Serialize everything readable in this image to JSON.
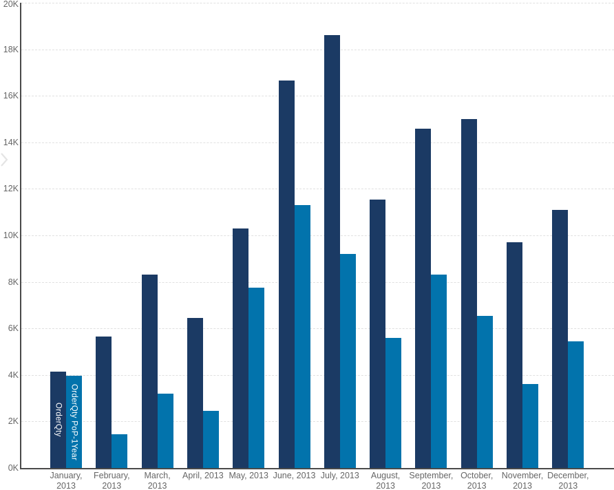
{
  "window": {
    "background": "#ffffff"
  },
  "icons": {
    "pane_expander": "chevron-right"
  },
  "chart_data": {
    "type": "bar",
    "title": "",
    "xlabel": "",
    "ylabel": "",
    "categories": [
      "January, 2013",
      "February, 2013",
      "March, 2013",
      "April, 2013",
      "May, 2013",
      "June, 2013",
      "July, 2013",
      "August, 2013",
      "September, 2013",
      "October, 2013",
      "November, 2013",
      "December, 2013"
    ],
    "series": [
      {
        "name": "OrderQty",
        "color": "#1B3A64",
        "values": [
          4150,
          5650,
          8300,
          6450,
          10300,
          16650,
          18600,
          11550,
          14600,
          15000,
          9700,
          11100
        ]
      },
      {
        "name": "OrderQty PoP-1Year",
        "color": "#0273AC",
        "values": [
          3950,
          1450,
          3200,
          2450,
          7750,
          11300,
          9200,
          5600,
          8300,
          6550,
          3600,
          5450
        ]
      }
    ],
    "ylim": [
      0,
      20000
    ],
    "ytick_step": 2000,
    "ytick_labels": [
      "0K",
      "2K",
      "4K",
      "6K",
      "8K",
      "10K",
      "12K",
      "14K",
      "16K",
      "18K",
      "20K"
    ],
    "grid": "horizontal-dashed",
    "gridline_color": "#e0e0e0",
    "axis_line_color": "#4a4a4a",
    "axis_label_color": "#666666",
    "bar_label_text_color": "#ffffff",
    "legend": "series-names-shown-inside-first-category-bars"
  }
}
